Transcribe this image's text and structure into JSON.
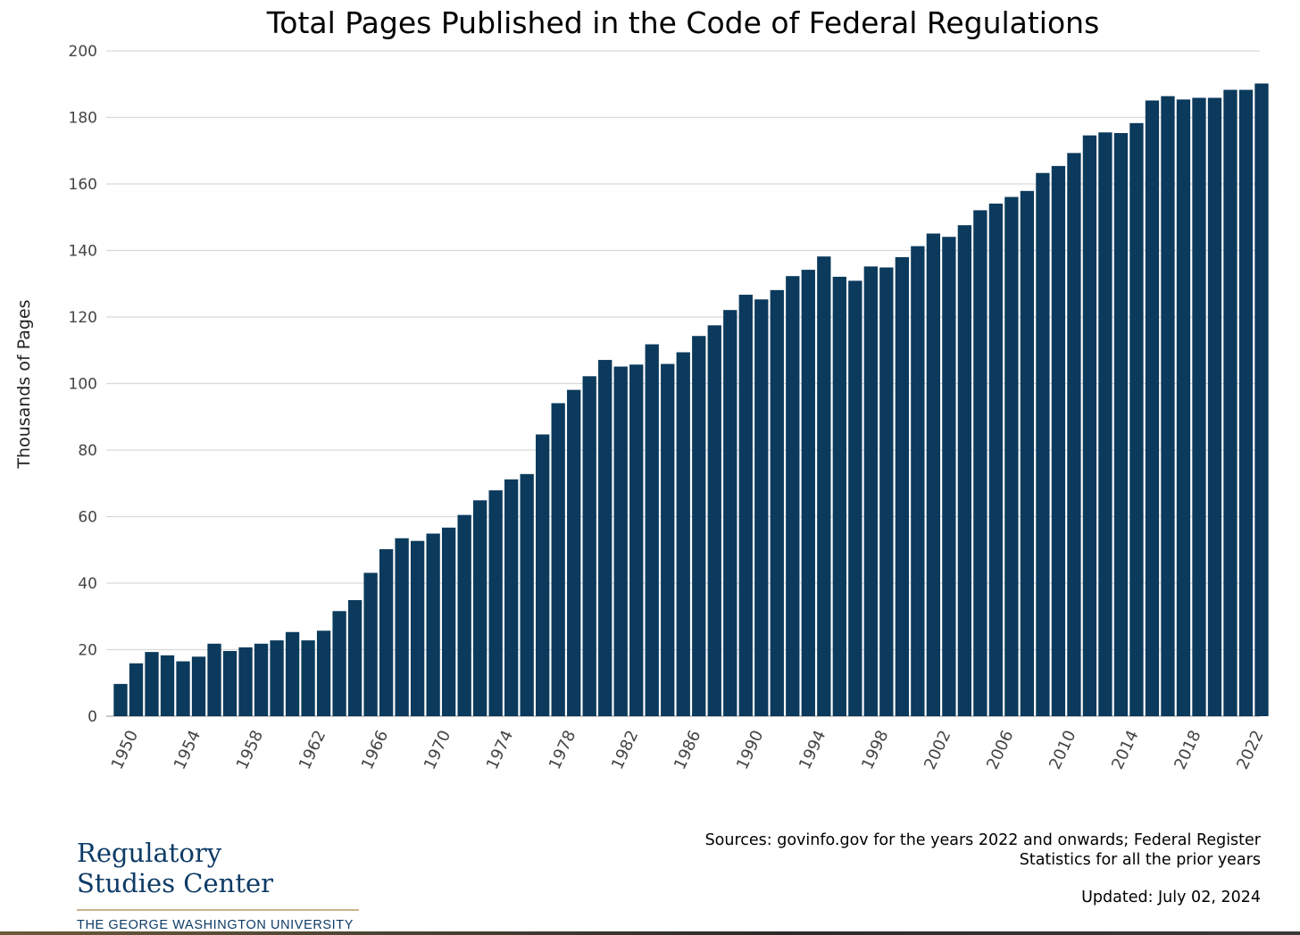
{
  "chart_data": {
    "type": "bar",
    "title": "Total Pages Published in the Code of Federal Regulations",
    "ylabel": "Thousands of Pages",
    "xlabel": "",
    "ylim": [
      0,
      200
    ],
    "yticks": [
      0,
      20,
      40,
      60,
      80,
      100,
      120,
      140,
      160,
      180,
      200
    ],
    "xtick_labels": [
      "1950",
      "1954",
      "1958",
      "1962",
      "1966",
      "1970",
      "1974",
      "1978",
      "1982",
      "1986",
      "1990",
      "1994",
      "1998",
      "2002",
      "2006",
      "2010",
      "2014",
      "2018",
      "2022"
    ],
    "grid": true,
    "bar_color": "#0b3a5c",
    "categories": [
      1950,
      1951,
      1952,
      1953,
      1954,
      1955,
      1956,
      1957,
      1958,
      1959,
      1960,
      1961,
      1962,
      1963,
      1964,
      1965,
      1966,
      1967,
      1968,
      1969,
      1970,
      1971,
      1972,
      1973,
      1974,
      1975,
      1976,
      1977,
      1978,
      1979,
      1980,
      1981,
      1982,
      1983,
      1984,
      1985,
      1986,
      1987,
      1988,
      1989,
      1990,
      1991,
      1992,
      1993,
      1994,
      1995,
      1996,
      1997,
      1998,
      1999,
      2000,
      2001,
      2002,
      2003,
      2004,
      2005,
      2006,
      2007,
      2008,
      2009,
      2010,
      2011,
      2012,
      2013,
      2014,
      2015,
      2016,
      2017,
      2018,
      2019,
      2020,
      2021,
      2022,
      2023
    ],
    "values": [
      9.7,
      15.9,
      19.3,
      18.3,
      16.5,
      17.9,
      21.8,
      19.6,
      20.7,
      21.8,
      22.8,
      25.3,
      22.8,
      25.7,
      31.6,
      34.9,
      43.1,
      50.2,
      53.5,
      52.7,
      54.9,
      56.7,
      60.5,
      64.9,
      67.9,
      71.2,
      72.8,
      84.7,
      94.1,
      98.1,
      102.2,
      107.1,
      105.1,
      105.7,
      111.8,
      105.9,
      109.4,
      114.3,
      117.5,
      122.1,
      126.7,
      125.3,
      128.1,
      132.3,
      134.2,
      138.2,
      132.1,
      130.9,
      135.2,
      134.9,
      138.0,
      141.3,
      145.1,
      144.1,
      147.6,
      152.1,
      154.1,
      156.1,
      157.9,
      163.3,
      165.4,
      169.3,
      174.6,
      175.5,
      175.3,
      178.3,
      185.1,
      186.4,
      185.4,
      185.9,
      185.9,
      188.3,
      188.3,
      190.2
    ]
  },
  "footer": {
    "sources_line1": "Sources: govinfo.gov for the years 2022 and onwards; Federal Register",
    "sources_line2": "Statistics for all the prior years",
    "updated": "Updated: July 02, 2024"
  },
  "logo": {
    "line1": "Regulatory",
    "line2": "Studies Center",
    "subtitle": "THE GEORGE WASHINGTON UNIVERSITY"
  },
  "colors": {
    "bar": "#0b3a5c",
    "grid": "#d9d9d9",
    "logo": "#0d3b66"
  }
}
